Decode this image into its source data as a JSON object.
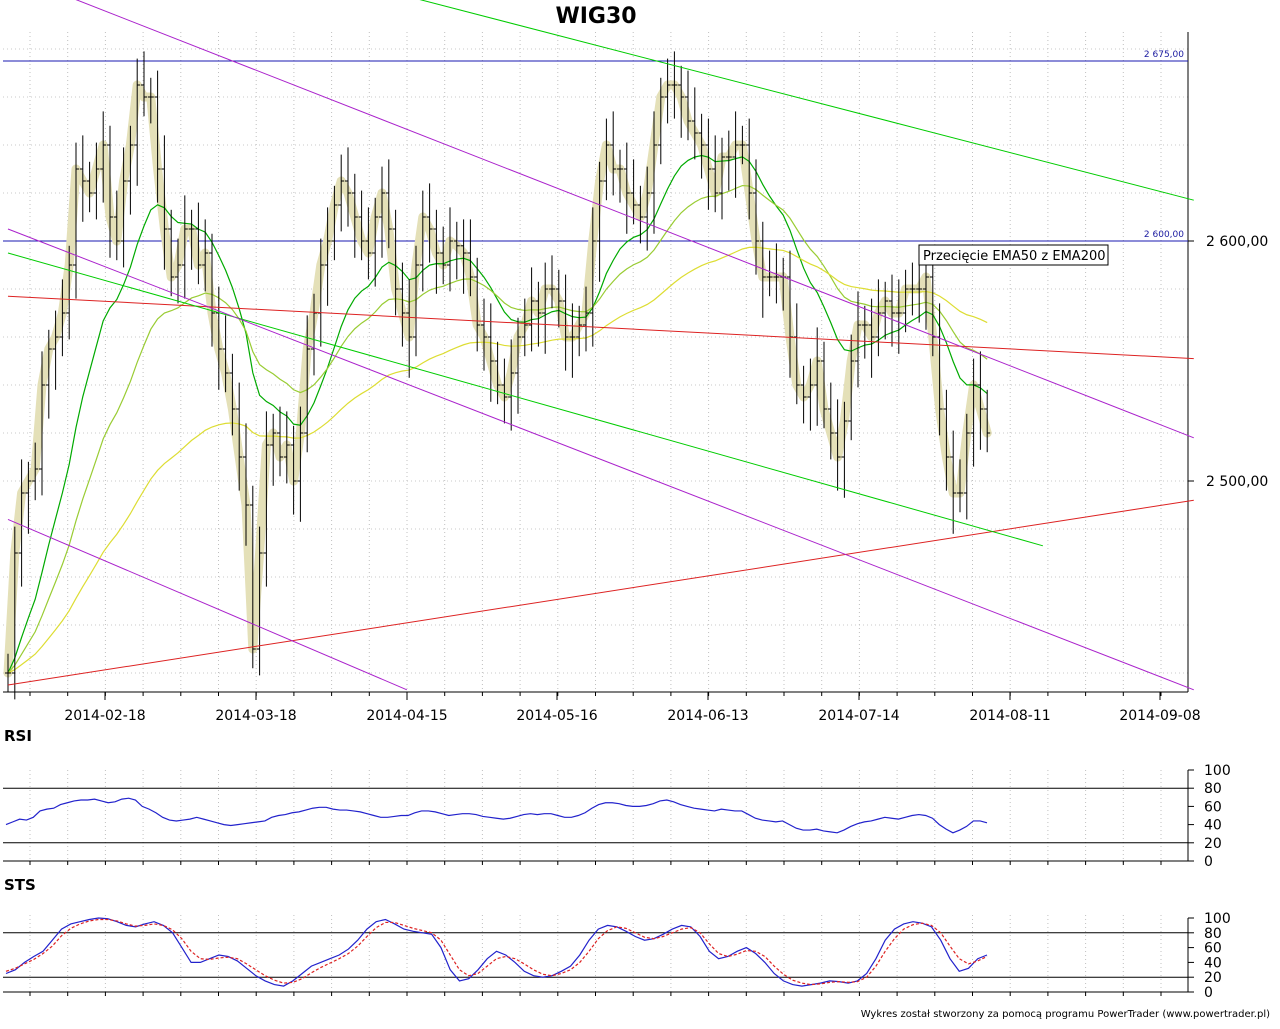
{
  "chart_data": [
    {
      "type": "ohlc",
      "title": "WIG30",
      "x_tick_labels": [
        "2014-02-18",
        "2014-03-18",
        "2014-04-15",
        "2014-05-16",
        "2014-06-13",
        "2014-07-14",
        "2014-08-11",
        "2014-09-08"
      ],
      "y_tick_labels": [
        "2 600,00",
        "2 500,00"
      ],
      "ylim": [
        2415,
        2700
      ],
      "y_ticks": [
        2600,
        2500
      ],
      "grid": true,
      "horizontal_levels": [
        {
          "label": "2 675,00",
          "value": 2675
        },
        {
          "label": "2 600,00",
          "value": 2600
        }
      ],
      "annotation": "Przecięcie EMA50 z EMA200",
      "close": [
        2420,
        2470,
        2495,
        2500,
        2505,
        2540,
        2555,
        2560,
        2570,
        2590,
        2630,
        2625,
        2620,
        2630,
        2640,
        2610,
        2600,
        2625,
        2640,
        2665,
        2660,
        2660,
        2630,
        2605,
        2585,
        2590,
        2605,
        2605,
        2590,
        2595,
        2570,
        2555,
        2545,
        2530,
        2510,
        2490,
        2430,
        2470,
        2515,
        2520,
        2510,
        2515,
        2500,
        2520,
        2555,
        2570,
        2590,
        2600,
        2615,
        2625,
        2620,
        2610,
        2600,
        2595,
        2610,
        2620,
        2605,
        2580,
        2570,
        2560,
        2590,
        2610,
        2605,
        2595,
        2590,
        2600,
        2598,
        2595,
        2585,
        2565,
        2560,
        2550,
        2540,
        2535,
        2545,
        2560,
        2565,
        2575,
        2570,
        2580,
        2580,
        2575,
        2560,
        2560,
        2565,
        2570,
        2600,
        2625,
        2640,
        2630,
        2630,
        2620,
        2615,
        2610,
        2620,
        2640,
        2660,
        2665,
        2665,
        2660,
        2650,
        2645,
        2640,
        2630,
        2620,
        2635,
        2635,
        2640,
        2640,
        2620,
        2600,
        2585,
        2585,
        2585,
        2585,
        2560,
        2540,
        2535,
        2540,
        2550,
        2530,
        2520,
        2510,
        2525,
        2550,
        2565,
        2565,
        2560,
        2570,
        2575,
        2570,
        2570,
        2580,
        2580,
        2580,
        2585,
        2560,
        2530,
        2510,
        2495,
        2495,
        2520,
        2540,
        2530,
        2520
      ],
      "series": [
        {
          "name": "EMA",
          "color": "#00aa00"
        },
        {
          "name": "EMA",
          "color": "#99cc33"
        },
        {
          "name": "EMA",
          "color": "#dddd33"
        }
      ],
      "trendlines": [
        {
          "color": "#dd2222",
          "from": [
            "2014-01-31",
            2577
          ],
          "to": [
            "2014-09-08",
            2551
          ]
        },
        {
          "color": "#dd2222",
          "from": [
            "2014-01-31",
            2415
          ],
          "to": [
            "2014-09-08",
            2492
          ]
        },
        {
          "color": "#00cc00",
          "from": [
            "2014-04-15",
            2702
          ],
          "to": [
            "2014-09-08",
            2617
          ]
        },
        {
          "color": "#00cc00",
          "from": [
            "2014-01-31",
            2595
          ],
          "to": [
            "2014-08-11",
            2473
          ]
        },
        {
          "color": "#aa22cc",
          "from": [
            "2014-02-11",
            2702
          ],
          "to": [
            "2014-09-08",
            2518
          ]
        },
        {
          "color": "#aa22cc",
          "from": [
            "2014-01-31",
            2605
          ],
          "to": [
            "2014-09-08",
            2413
          ]
        },
        {
          "color": "#aa22cc",
          "from": [
            "2014-01-31",
            2484
          ],
          "to": [
            "2014-04-15",
            2413
          ]
        }
      ]
    },
    {
      "type": "line",
      "title": "RSI",
      "ylim": [
        0,
        100
      ],
      "y_ticks": [
        0,
        20,
        40,
        60,
        80,
        100
      ],
      "reference_levels": [
        20,
        80
      ],
      "series": [
        {
          "color": "#2222cc",
          "values": [
            40,
            43,
            46,
            45,
            48,
            55,
            57,
            58,
            62,
            64,
            66,
            67,
            67,
            68,
            66,
            64,
            65,
            68,
            69,
            67,
            60,
            57,
            53,
            48,
            45,
            44,
            45,
            46,
            48,
            46,
            44,
            42,
            40,
            39,
            40,
            41,
            42,
            43,
            44,
            48,
            50,
            51,
            53,
            54,
            56,
            58,
            59,
            59,
            57,
            56,
            56,
            55,
            54,
            52,
            50,
            48,
            48,
            49,
            50,
            50,
            53,
            55,
            55,
            54,
            52,
            50,
            51,
            52,
            52,
            51,
            49,
            48,
            47,
            46,
            47,
            49,
            51,
            52,
            51,
            52,
            52,
            50,
            48,
            48,
            50,
            53,
            58,
            62,
            64,
            64,
            63,
            61,
            60,
            60,
            61,
            63,
            66,
            67,
            65,
            62,
            60,
            58,
            57,
            56,
            55,
            57,
            56,
            55,
            55,
            51,
            47,
            45,
            44,
            43,
            44,
            40,
            36,
            34,
            34,
            35,
            33,
            32,
            31,
            34,
            38,
            41,
            43,
            44,
            46,
            48,
            47,
            46,
            48,
            50,
            51,
            50,
            47,
            40,
            35,
            31,
            34,
            38,
            44,
            44,
            42
          ]
        }
      ]
    },
    {
      "type": "line",
      "title": "STS",
      "ylim": [
        0,
        100
      ],
      "y_ticks": [
        0,
        20,
        40,
        60,
        80,
        100
      ],
      "reference_levels": [
        20,
        80
      ],
      "series": [
        {
          "color": "#2222cc",
          "values": [
            25,
            30,
            40,
            48,
            55,
            70,
            85,
            92,
            95,
            98,
            100,
            99,
            95,
            90,
            88,
            92,
            95,
            90,
            80,
            60,
            40,
            40,
            45,
            50,
            48,
            42,
            32,
            22,
            15,
            10,
            8,
            15,
            25,
            35,
            40,
            45,
            50,
            58,
            70,
            85,
            95,
            98,
            92,
            85,
            82,
            80,
            78,
            60,
            30,
            15,
            18,
            30,
            45,
            55,
            50,
            40,
            28,
            22,
            20,
            22,
            28,
            35,
            50,
            70,
            85,
            90,
            88,
            82,
            75,
            70,
            72,
            78,
            85,
            90,
            88,
            75,
            55,
            45,
            48,
            55,
            60,
            52,
            40,
            25,
            15,
            10,
            8,
            10,
            12,
            15,
            14,
            12,
            15,
            25,
            45,
            70,
            85,
            92,
            95,
            93,
            88,
            70,
            45,
            28,
            32,
            45,
            50
          ]
        },
        {
          "color": "#dd2222",
          "values": [
            28,
            32,
            38,
            44,
            52,
            62,
            76,
            86,
            92,
            96,
            98,
            98,
            96,
            92,
            89,
            90,
            92,
            90,
            84,
            72,
            55,
            45,
            44,
            46,
            47,
            45,
            38,
            30,
            22,
            16,
            12,
            13,
            18,
            26,
            33,
            39,
            45,
            52,
            62,
            75,
            87,
            94,
            94,
            90,
            86,
            83,
            80,
            70,
            50,
            30,
            22,
            25,
            35,
            45,
            48,
            45,
            38,
            30,
            24,
            22,
            25,
            30,
            40,
            55,
            72,
            83,
            88,
            86,
            80,
            74,
            72,
            75,
            80,
            85,
            87,
            80,
            65,
            52,
            48,
            51,
            56,
            55,
            48,
            35,
            24,
            16,
            12,
            10,
            11,
            13,
            14,
            13,
            14,
            20,
            35,
            55,
            72,
            85,
            91,
            93,
            90,
            80,
            62,
            45,
            38,
            42,
            48
          ]
        }
      ]
    }
  ],
  "footer": {
    "credit": "Wykres został stworzony za pomocą programu PowerTrader (www.powertrader.pl)"
  }
}
